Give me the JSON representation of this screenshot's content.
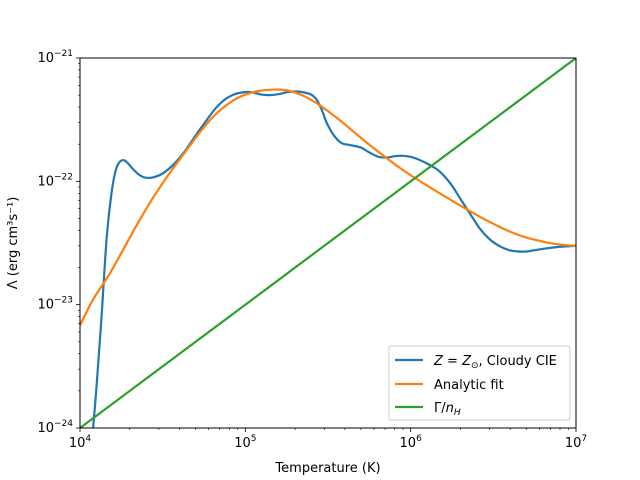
{
  "chart_data": {
    "type": "line",
    "title": "",
    "xlabel": "Temperature (K)",
    "ylabel": "Λ (erg cm³s⁻¹)",
    "xscale": "log",
    "yscale": "log",
    "xlim": [
      10000,
      10000000
    ],
    "ylim": [
      1e-24,
      1e-21
    ],
    "grid": false,
    "legend_position": "lower-right",
    "x_ticks": [
      {
        "value": 10000,
        "base": "10",
        "exp": "4"
      },
      {
        "value": 100000,
        "base": "10",
        "exp": "5"
      },
      {
        "value": 1000000,
        "base": "10",
        "exp": "6"
      },
      {
        "value": 10000000,
        "base": "10",
        "exp": "7"
      }
    ],
    "y_ticks": [
      {
        "value": 1e-24,
        "base": "10",
        "exp": "−24"
      },
      {
        "value": 1e-23,
        "base": "10",
        "exp": "−23"
      },
      {
        "value": 1e-22,
        "base": "10",
        "exp": "−22"
      },
      {
        "value": 1e-21,
        "base": "10",
        "exp": "−21"
      }
    ],
    "series": [
      {
        "name": "Z = Z⊙, Cloudy CIE",
        "legend_parts": [
          "Z",
          " = ",
          "Z",
          "⊙",
          ", Cloudy CIE"
        ],
        "color": "#1f77b4",
        "x": [
          12000,
          12600,
          13500,
          14500,
          15500,
          16500,
          17500,
          18500,
          19500,
          21000,
          23000,
          25000,
          28000,
          32000,
          37000,
          43000,
          50000,
          58000,
          66000,
          75000,
          85000,
          95000,
          105000,
          115000,
          125000,
          140000,
          160000,
          180000,
          200000,
          220000,
          250000,
          270000,
          290000,
          310000,
          340000,
          380000,
          430000,
          500000,
          560000,
          640000,
          720000,
          800000,
          900000,
          1000000,
          1120000,
          1300000,
          1500000,
          1750000,
          2000000,
          2300000,
          2600000,
          3000000,
          3500000,
          4000000,
          4500000,
          5000000,
          5500000,
          6500000,
          8000000,
          10000000
        ],
        "y": [
          1e-24,
          2.2e-24,
          8e-24,
          3.5e-23,
          8e-23,
          1.25e-22,
          1.45e-22,
          1.48e-22,
          1.4e-22,
          1.25e-22,
          1.12e-22,
          1.07e-22,
          1.08e-22,
          1.17e-22,
          1.38e-22,
          1.75e-22,
          2.35e-22,
          3.1e-22,
          3.9e-22,
          4.6e-22,
          5.05e-22,
          5.25e-22,
          5.3e-22,
          5.2e-22,
          5.05e-22,
          5e-22,
          5.1e-22,
          5.3e-22,
          5.35e-22,
          5.3e-22,
          5.05e-22,
          4.6e-22,
          3.8e-22,
          3e-22,
          2.4e-22,
          2.05e-22,
          1.97e-22,
          1.88e-22,
          1.72e-22,
          1.58e-22,
          1.56e-22,
          1.6e-22,
          1.61e-22,
          1.58e-22,
          1.5e-22,
          1.36e-22,
          1.2e-22,
          9.5e-23,
          7.2e-23,
          5.4e-23,
          4.2e-23,
          3.4e-23,
          2.95e-23,
          2.75e-23,
          2.7e-23,
          2.7e-23,
          2.75e-23,
          2.85e-23,
          2.95e-23,
          3e-23
        ]
      },
      {
        "name": "Analytic fit",
        "legend_parts": [
          "Analytic fit"
        ],
        "color": "#ff7f0e",
        "x": [
          10000,
          12000,
          15000,
          18000,
          22000,
          27000,
          33000,
          40000,
          50000,
          60000,
          70000,
          85000,
          100000,
          120000,
          150000,
          180000,
          220000,
          270000,
          330000,
          400000,
          500000,
          600000,
          700000,
          850000,
          1000000,
          1200000,
          1500000,
          1800000,
          2200000,
          2700000,
          3300000,
          4000000,
          5000000,
          6000000,
          7000000,
          8500000,
          10000000
        ],
        "y": [
          6.8e-24,
          1.1e-23,
          1.75e-23,
          2.7e-23,
          4.4e-23,
          7e-23,
          1.05e-22,
          1.5e-22,
          2.25e-22,
          3.05e-22,
          3.75e-22,
          4.55e-22,
          5.05e-22,
          5.4e-22,
          5.55e-22,
          5.45e-22,
          5e-22,
          4.3e-22,
          3.55e-22,
          2.9e-22,
          2.25e-22,
          1.85e-22,
          1.58e-22,
          1.3e-22,
          1.12e-22,
          9.6e-23,
          8e-23,
          6.9e-23,
          5.9e-23,
          5.05e-23,
          4.4e-23,
          3.9e-23,
          3.5e-23,
          3.3e-23,
          3.15e-23,
          3.05e-23,
          2.98e-23
        ]
      },
      {
        "name": "Γ/n_H",
        "legend_parts": [
          "Γ/",
          "n",
          "H"
        ],
        "color": "#2ca02c",
        "x": [
          10000,
          10000000
        ],
        "y": [
          1e-24,
          1e-21
        ]
      }
    ]
  }
}
